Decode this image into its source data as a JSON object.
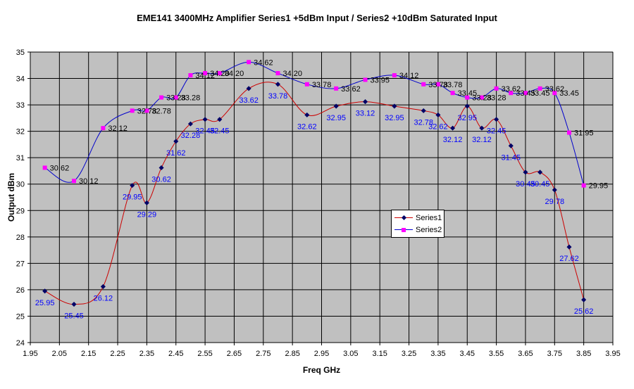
{
  "chart_data": {
    "type": "line",
    "title": "EME141 3400MHz Amplifier Series1 +5dBm Input / Series2 +10dBm Saturated Input",
    "xlabel": "Freq GHz",
    "ylabel": "Output dBm",
    "xlim": [
      1.95,
      3.95
    ],
    "ylim": [
      24,
      35
    ],
    "x_ticks": [
      "1.95",
      "2.05",
      "2.15",
      "2.25",
      "2.35",
      "2.45",
      "2.55",
      "2.65",
      "2.75",
      "2.85",
      "2.95",
      "3.05",
      "3.15",
      "3.25",
      "3.35",
      "3.45",
      "3.55",
      "3.65",
      "3.75",
      "3.85",
      "3.95"
    ],
    "y_ticks": [
      "24",
      "25",
      "26",
      "27",
      "28",
      "29",
      "30",
      "31",
      "32",
      "33",
      "34",
      "35"
    ],
    "grid": true,
    "legend_position": "center-right",
    "series": [
      {
        "name": "Series1",
        "color": "#cc0000",
        "marker_color": "#000066",
        "label_color": "#0000ff",
        "x": [
          2.0,
          2.1,
          2.2,
          2.3,
          2.35,
          2.4,
          2.45,
          2.5,
          2.55,
          2.6,
          2.7,
          2.8,
          2.9,
          3.0,
          3.1,
          3.2,
          3.3,
          3.35,
          3.4,
          3.45,
          3.5,
          3.55,
          3.6,
          3.65,
          3.7,
          3.75,
          3.8,
          3.85
        ],
        "values": [
          25.95,
          25.45,
          26.12,
          29.95,
          29.29,
          30.62,
          31.62,
          32.28,
          32.45,
          32.45,
          33.62,
          33.78,
          32.62,
          32.95,
          33.12,
          32.95,
          32.78,
          32.62,
          32.12,
          32.95,
          32.12,
          32.45,
          31.45,
          30.45,
          30.45,
          29.78,
          27.62,
          25.62
        ],
        "labels": [
          "25.95",
          "25.45",
          "26.12",
          "29.95",
          "29.29",
          "30.62",
          "31.62",
          "32.28",
          "32.45",
          "32.45",
          "33.62",
          "33.78",
          "32.62",
          "32.95",
          "33.12",
          "32.95",
          "32.78",
          "32.62",
          "32.12",
          "32.95",
          "32.12",
          "32.45",
          "31.45",
          "30.45",
          "30.45",
          "29.78",
          "27.62",
          "25.62"
        ]
      },
      {
        "name": "Series2",
        "color": "#0000cc",
        "marker_color": "#ff00ff",
        "label_color": "#000000",
        "x": [
          2.0,
          2.1,
          2.2,
          2.3,
          2.35,
          2.4,
          2.45,
          2.5,
          2.55,
          2.6,
          2.7,
          2.8,
          2.9,
          3.0,
          3.1,
          3.2,
          3.3,
          3.35,
          3.4,
          3.45,
          3.5,
          3.55,
          3.6,
          3.65,
          3.7,
          3.75,
          3.8,
          3.85
        ],
        "values": [
          30.62,
          30.12,
          32.12,
          32.78,
          32.78,
          33.28,
          33.28,
          34.12,
          34.2,
          34.2,
          34.62,
          34.2,
          33.78,
          33.62,
          33.95,
          34.12,
          33.78,
          33.78,
          33.45,
          33.28,
          33.28,
          33.62,
          33.45,
          33.45,
          33.62,
          33.45,
          31.95,
          29.95
        ],
        "labels": [
          "30.62",
          "30.12",
          "32.12",
          "32.78",
          "32.78",
          "33.28",
          "33.28",
          "34.12",
          "34.20",
          "34.20",
          "34.62",
          "34.20",
          "33.78",
          "33.62",
          "33.95",
          "34.12",
          "33.78",
          "33.78",
          "33.45",
          "33.28",
          "33.28",
          "33.62",
          "33.45",
          "33.45",
          "33.62",
          "33.45",
          "31.95",
          "29.95"
        ]
      }
    ]
  }
}
